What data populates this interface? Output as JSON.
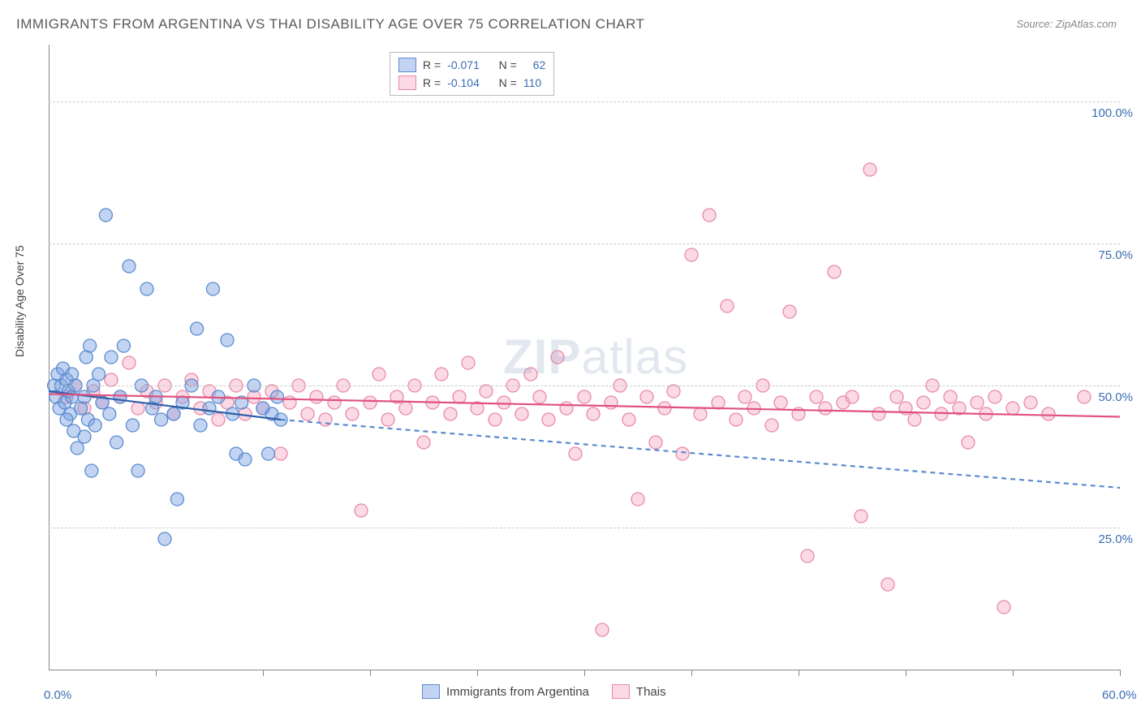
{
  "title": "IMMIGRANTS FROM ARGENTINA VS THAI DISABILITY AGE OVER 75 CORRELATION CHART",
  "source": "Source: ZipAtlas.com",
  "y_axis_label": "Disability Age Over 75",
  "watermark_a": "ZIP",
  "watermark_b": "atlas",
  "chart": {
    "type": "scatter",
    "xlim": [
      0,
      60
    ],
    "ylim": [
      0,
      110
    ],
    "x_ticks": [
      0,
      6,
      12,
      18,
      24,
      30,
      36,
      42,
      48,
      54,
      60
    ],
    "x_tick_labels_shown": {
      "0": "0.0%",
      "60": "60.0%"
    },
    "y_ticks": [
      25,
      50,
      75,
      100
    ],
    "y_tick_labels": [
      "25.0%",
      "50.0%",
      "75.0%",
      "100.0%"
    ],
    "grid_color": "#cccccc",
    "axis_color": "#888888",
    "background_color": "#ffffff",
    "marker_radius": 8,
    "marker_stroke_width": 1.3,
    "trend_line_width": 2.2,
    "label_fontsize": 14,
    "tick_fontsize": 15,
    "tick_color": "#3b6db3"
  },
  "series": {
    "argentina": {
      "label": "Immigrants from Argentina",
      "fill": "rgba(120,160,225,0.45)",
      "stroke": "#5a8bd0",
      "trend_color": "#2d5fa8",
      "trend_dash_color": "#5a8bd0",
      "R": "-0.071",
      "N": "62",
      "trend_solid": {
        "x1": 0,
        "y1": 49,
        "x2": 13,
        "y2": 44
      },
      "trend_dashed": {
        "x1": 13,
        "y1": 44,
        "x2": 60,
        "y2": 32
      },
      "points": [
        [
          0.3,
          50
        ],
        [
          0.4,
          48
        ],
        [
          0.5,
          52
        ],
        [
          0.6,
          46
        ],
        [
          0.7,
          50
        ],
        [
          0.8,
          53
        ],
        [
          0.9,
          47
        ],
        [
          1.0,
          51
        ],
        [
          1.1,
          49
        ],
        [
          1.2,
          45
        ],
        [
          1.3,
          48
        ],
        [
          1.4,
          42
        ],
        [
          1.5,
          50
        ],
        [
          1.6,
          39
        ],
        [
          1.8,
          46
        ],
        [
          2.0,
          48
        ],
        [
          2.1,
          55
        ],
        [
          2.2,
          44
        ],
        [
          2.3,
          57
        ],
        [
          2.4,
          35
        ],
        [
          2.5,
          50
        ],
        [
          2.6,
          43
        ],
        [
          2.8,
          52
        ],
        [
          3.0,
          47
        ],
        [
          3.2,
          80
        ],
        [
          3.4,
          45
        ],
        [
          3.5,
          55
        ],
        [
          3.8,
          40
        ],
        [
          4.0,
          48
        ],
        [
          4.2,
          57
        ],
        [
          4.5,
          71
        ],
        [
          4.7,
          43
        ],
        [
          5.0,
          35
        ],
        [
          5.2,
          50
        ],
        [
          5.5,
          67
        ],
        [
          5.8,
          46
        ],
        [
          6.0,
          48
        ],
        [
          6.3,
          44
        ],
        [
          6.5,
          23
        ],
        [
          7.0,
          45
        ],
        [
          7.2,
          30
        ],
        [
          7.5,
          47
        ],
        [
          8.0,
          50
        ],
        [
          8.3,
          60
        ],
        [
          8.5,
          43
        ],
        [
          9.0,
          46
        ],
        [
          9.2,
          67
        ],
        [
          9.5,
          48
        ],
        [
          10.0,
          58
        ],
        [
          10.3,
          45
        ],
        [
          10.5,
          38
        ],
        [
          10.8,
          47
        ],
        [
          11.0,
          37
        ],
        [
          11.5,
          50
        ],
        [
          12.0,
          46
        ],
        [
          12.3,
          38
        ],
        [
          12.5,
          45
        ],
        [
          12.8,
          48
        ],
        [
          13.0,
          44
        ],
        [
          1.0,
          44
        ],
        [
          1.3,
          52
        ],
        [
          2.0,
          41
        ]
      ]
    },
    "thai": {
      "label": "Thais",
      "fill": "rgba(245,160,190,0.40)",
      "stroke": "#e88aa8",
      "trend_color": "#e0527d",
      "R": "-0.104",
      "N": "110",
      "trend_solid": {
        "x1": 0,
        "y1": 48.5,
        "x2": 60,
        "y2": 44.5
      },
      "points": [
        [
          1.0,
          48
        ],
        [
          1.5,
          50
        ],
        [
          2.0,
          46
        ],
        [
          2.5,
          49
        ],
        [
          3.0,
          47
        ],
        [
          3.5,
          51
        ],
        [
          4.0,
          48
        ],
        [
          4.5,
          54
        ],
        [
          5.0,
          46
        ],
        [
          5.5,
          49
        ],
        [
          6.0,
          47
        ],
        [
          6.5,
          50
        ],
        [
          7.0,
          45
        ],
        [
          7.5,
          48
        ],
        [
          8.0,
          51
        ],
        [
          8.5,
          46
        ],
        [
          9.0,
          49
        ],
        [
          9.5,
          44
        ],
        [
          10.0,
          47
        ],
        [
          10.5,
          50
        ],
        [
          11.0,
          45
        ],
        [
          11.5,
          48
        ],
        [
          12.0,
          46
        ],
        [
          12.5,
          49
        ],
        [
          13.0,
          38
        ],
        [
          13.5,
          47
        ],
        [
          14.0,
          50
        ],
        [
          14.5,
          45
        ],
        [
          15.0,
          48
        ],
        [
          15.5,
          44
        ],
        [
          16.0,
          47
        ],
        [
          16.5,
          50
        ],
        [
          17.0,
          45
        ],
        [
          17.5,
          28
        ],
        [
          18.0,
          47
        ],
        [
          18.5,
          52
        ],
        [
          19.0,
          44
        ],
        [
          19.5,
          48
        ],
        [
          20.0,
          46
        ],
        [
          20.5,
          50
        ],
        [
          21.0,
          40
        ],
        [
          21.5,
          47
        ],
        [
          22.0,
          52
        ],
        [
          22.5,
          45
        ],
        [
          23.0,
          48
        ],
        [
          23.5,
          54
        ],
        [
          24.0,
          46
        ],
        [
          24.5,
          49
        ],
        [
          25.0,
          44
        ],
        [
          25.5,
          47
        ],
        [
          26.0,
          50
        ],
        [
          26.5,
          45
        ],
        [
          27.0,
          52
        ],
        [
          27.5,
          48
        ],
        [
          28.0,
          44
        ],
        [
          28.5,
          55
        ],
        [
          29.0,
          46
        ],
        [
          29.5,
          38
        ],
        [
          30.0,
          48
        ],
        [
          30.5,
          45
        ],
        [
          31.0,
          7
        ],
        [
          31.5,
          47
        ],
        [
          32.0,
          50
        ],
        [
          32.5,
          44
        ],
        [
          33.0,
          30
        ],
        [
          33.5,
          48
        ],
        [
          34.0,
          40
        ],
        [
          34.5,
          46
        ],
        [
          35.0,
          49
        ],
        [
          35.5,
          38
        ],
        [
          36.0,
          73
        ],
        [
          36.5,
          45
        ],
        [
          37.0,
          80
        ],
        [
          37.5,
          47
        ],
        [
          38.0,
          64
        ],
        [
          38.5,
          44
        ],
        [
          39.0,
          48
        ],
        [
          39.5,
          46
        ],
        [
          40.0,
          50
        ],
        [
          40.5,
          43
        ],
        [
          41.0,
          47
        ],
        [
          41.5,
          63
        ],
        [
          42.0,
          45
        ],
        [
          42.5,
          20
        ],
        [
          43.0,
          48
        ],
        [
          43.5,
          46
        ],
        [
          44.0,
          70
        ],
        [
          44.5,
          47
        ],
        [
          45.0,
          48
        ],
        [
          45.5,
          27
        ],
        [
          46.0,
          88
        ],
        [
          46.5,
          45
        ],
        [
          47.0,
          15
        ],
        [
          47.5,
          48
        ],
        [
          48.0,
          46
        ],
        [
          48.5,
          44
        ],
        [
          49.0,
          47
        ],
        [
          49.5,
          50
        ],
        [
          50.0,
          45
        ],
        [
          50.5,
          48
        ],
        [
          51.0,
          46
        ],
        [
          51.5,
          40
        ],
        [
          52.0,
          47
        ],
        [
          52.5,
          45
        ],
        [
          53.0,
          48
        ],
        [
          53.5,
          11
        ],
        [
          54.0,
          46
        ],
        [
          55.0,
          47
        ],
        [
          56.0,
          45
        ],
        [
          58.0,
          48
        ]
      ]
    }
  },
  "legend_top_labels": {
    "R": "R =",
    "N": "N ="
  },
  "bottom_legend": [
    {
      "key": "argentina"
    },
    {
      "key": "thai"
    }
  ]
}
